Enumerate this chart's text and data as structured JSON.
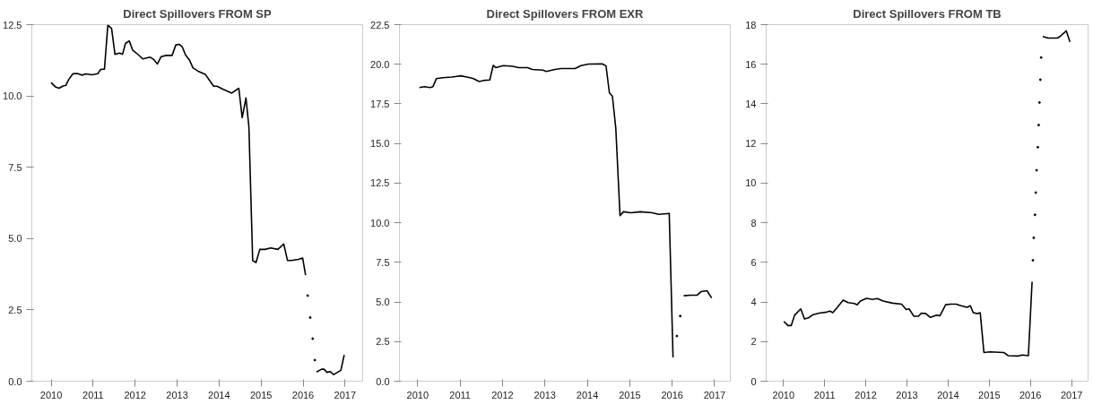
{
  "chart_data": [
    {
      "type": "line",
      "title": "Direct Spillovers FROM SP",
      "xlim": [
        2009.54,
        2017.42
      ],
      "ylim": [
        0,
        12.5
      ],
      "xticks": [
        2010,
        2011,
        2012,
        2013,
        2014,
        2015,
        2016,
        2017
      ],
      "yticks": [
        {
          "value": 0,
          "label": "0.0"
        },
        2.5,
        {
          "value": 5,
          "label": "5.0"
        },
        7.5,
        {
          "value": 10,
          "label": "10.0"
        },
        12.5
      ],
      "grid": false,
      "series": [
        {
          "color": "#000000",
          "x": [
            2010.0,
            2010.1,
            2010.19,
            2010.28,
            2010.35,
            2010.42,
            2010.52,
            2010.62,
            2010.73,
            2010.83,
            2010.97,
            2011.11,
            2011.18,
            2011.27,
            2011.35,
            2011.44,
            2011.52,
            2011.63,
            2011.7,
            2011.77,
            2011.86,
            2011.94,
            2012.08,
            2012.18,
            2012.36,
            2012.45,
            2012.53,
            2012.62,
            2012.74,
            2012.88,
            2012.97,
            2013.05,
            2013.12,
            2013.2,
            2013.29,
            2013.38,
            2013.5,
            2013.67,
            2013.78,
            2013.87,
            2013.95,
            2014.09,
            2014.3,
            2014.47,
            2014.55,
            2014.64,
            2014.71,
            2014.8,
            2014.88,
            2014.97,
            2015.09,
            2015.23,
            2015.4,
            2015.54,
            2015.63,
            2015.72,
            2015.89,
            2015.99,
            2016.06,
            2016.2,
            2016.32,
            2016.44,
            2016.5,
            2016.57,
            2016.64,
            2016.73,
            2016.9,
            2016.98
          ],
          "values": [
            10.47,
            10.32,
            10.27,
            10.35,
            10.37,
            10.58,
            10.78,
            10.79,
            10.73,
            10.77,
            10.74,
            10.78,
            10.93,
            10.94,
            12.48,
            12.36,
            11.46,
            11.5,
            11.46,
            11.84,
            11.93,
            11.61,
            11.44,
            11.3,
            11.36,
            11.27,
            11.12,
            11.38,
            11.42,
            11.42,
            11.79,
            11.81,
            11.73,
            11.44,
            11.27,
            10.98,
            10.87,
            10.76,
            10.53,
            10.34,
            10.34,
            10.24,
            10.1,
            10.27,
            9.24,
            9.93,
            8.92,
            4.23,
            4.16,
            4.62,
            4.62,
            4.67,
            4.62,
            4.81,
            4.23,
            4.23,
            4.27,
            4.32,
            3.72,
            null,
            0.32,
            0.42,
            0.42,
            0.31,
            0.34,
            0.23,
            0.38,
            0.92
          ]
        },
        {
          "type": "scatter",
          "color": "#000000",
          "x": [
            2016.11,
            2016.17,
            2016.23,
            2016.28
          ],
          "values": [
            3.0,
            2.23,
            1.49,
            0.74
          ]
        }
      ]
    },
    {
      "type": "line",
      "title": "Direct Spillovers FROM EXR",
      "xlim": [
        2009.57,
        2017.37
      ],
      "ylim": [
        0,
        22.5
      ],
      "xticks": [
        2010,
        2011,
        2012,
        2013,
        2014,
        2015,
        2016,
        2017
      ],
      "yticks": [
        {
          "value": 0,
          "label": "0.0"
        },
        2.5,
        {
          "value": 5,
          "label": "5.0"
        },
        7.5,
        {
          "value": 10,
          "label": "10.0"
        },
        12.5,
        {
          "value": 15,
          "label": "15.0"
        },
        17.5,
        {
          "value": 20,
          "label": "20.0"
        },
        22.5
      ],
      "grid": false,
      "series": [
        {
          "color": "#000000",
          "x": [
            2010.04,
            2010.16,
            2010.29,
            2010.36,
            2010.44,
            2010.59,
            2010.8,
            2011.02,
            2011.16,
            2011.3,
            2011.45,
            2011.59,
            2011.7,
            2011.78,
            2011.84,
            2012.02,
            2012.24,
            2012.38,
            2012.59,
            2012.7,
            2012.95,
            2013.03,
            2013.24,
            2013.38,
            2013.71,
            2013.85,
            2014.03,
            2014.35,
            2014.44,
            2014.52,
            2014.59,
            2014.67,
            2014.77,
            2014.85,
            2015.03,
            2015.25,
            2015.53,
            2015.68,
            2015.93,
            2016.02,
            2016.15,
            2016.27,
            2016.43,
            2016.59,
            2016.68,
            2016.82,
            2016.93
          ],
          "values": [
            18.53,
            18.59,
            18.53,
            18.59,
            19.09,
            19.15,
            19.19,
            19.27,
            19.19,
            19.11,
            18.91,
            18.99,
            19.01,
            19.93,
            19.79,
            19.91,
            19.87,
            19.79,
            19.79,
            19.67,
            19.63,
            19.55,
            19.67,
            19.73,
            19.73,
            19.91,
            20.01,
            20.03,
            19.89,
            18.19,
            17.99,
            15.98,
            10.45,
            10.69,
            10.63,
            10.69,
            10.63,
            10.53,
            10.59,
            1.5,
            null,
            5.39,
            5.43,
            5.43,
            5.65,
            5.71,
            5.25
          ]
        },
        {
          "type": "scatter",
          "color": "#000000",
          "x": [
            2016.11,
            2016.19
          ],
          "values": [
            2.85,
            4.11
          ]
        }
      ]
    },
    {
      "type": "line",
      "title": "Direct Spillovers FROM TB",
      "xlim": [
        2009.58,
        2017.4
      ],
      "ylim": [
        0,
        18
      ],
      "xticks": [
        2010,
        2011,
        2012,
        2013,
        2014,
        2015,
        2016,
        2017
      ],
      "yticks": [
        0,
        2,
        4,
        6,
        8,
        10,
        12,
        14,
        16,
        18
      ],
      "grid": false,
      "series": [
        {
          "color": "#000000",
          "x": [
            2010.01,
            2010.11,
            2010.19,
            2010.27,
            2010.42,
            2010.51,
            2010.61,
            2010.72,
            2010.87,
            2011.05,
            2011.13,
            2011.2,
            2011.31,
            2011.45,
            2011.57,
            2011.72,
            2011.79,
            2011.87,
            2012.02,
            2012.16,
            2012.28,
            2012.42,
            2012.65,
            2012.87,
            2012.98,
            2013.05,
            2013.17,
            2013.28,
            2013.35,
            2013.46,
            2013.57,
            2013.72,
            2013.8,
            2013.94,
            2014.06,
            2014.2,
            2014.31,
            2014.46,
            2014.54,
            2014.61,
            2014.72,
            2014.78,
            2014.87,
            2015.02,
            2015.35,
            2015.46,
            2015.69,
            2015.8,
            2015.95,
            2016.04,
            2016.17,
            2016.3,
            2016.43,
            2016.65,
            2016.72,
            2016.87,
            2016.96
          ],
          "values": [
            3.01,
            2.81,
            2.81,
            3.33,
            3.65,
            3.14,
            3.2,
            3.36,
            3.44,
            3.49,
            3.54,
            3.46,
            3.73,
            4.09,
            3.97,
            3.92,
            3.86,
            4.05,
            4.18,
            4.13,
            4.17,
            4.05,
            3.94,
            3.89,
            3.62,
            3.65,
            3.28,
            3.28,
            3.44,
            3.41,
            3.22,
            3.33,
            3.3,
            3.86,
            3.89,
            3.89,
            3.81,
            3.73,
            3.81,
            3.46,
            3.41,
            3.46,
            1.45,
            1.48,
            1.45,
            1.29,
            1.27,
            1.32,
            1.29,
            5.02,
            null,
            17.4,
            17.32,
            17.32,
            17.4,
            17.69,
            17.13
          ]
        },
        {
          "type": "scatter",
          "color": "#000000",
          "x": [
            2016.06,
            2016.08,
            2016.11,
            2016.13,
            2016.15,
            2016.18,
            2016.2,
            2016.22,
            2016.24,
            2016.26
          ],
          "values": [
            6.1,
            7.24,
            8.4,
            9.52,
            10.65,
            11.81,
            12.93,
            14.07,
            15.22,
            16.34
          ]
        }
      ]
    }
  ]
}
